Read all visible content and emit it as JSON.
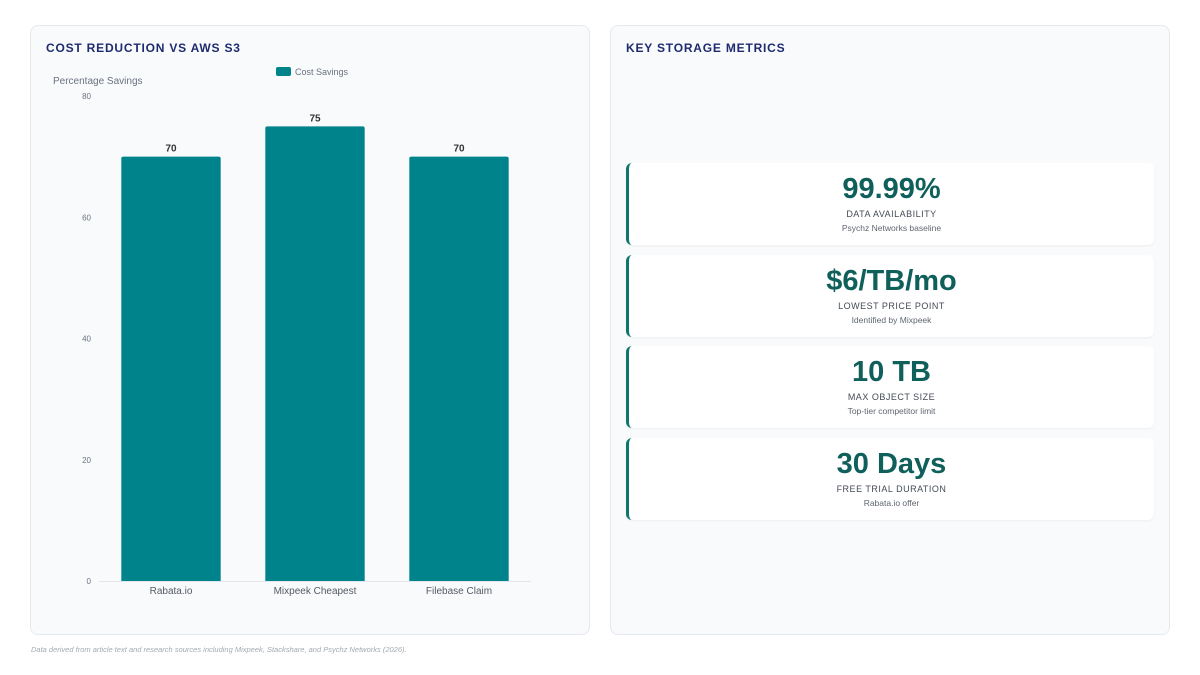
{
  "left_panel": {
    "title": "COST REDUCTION VS AWS S3"
  },
  "right_panel": {
    "title": "KEY STORAGE METRICS",
    "metrics": [
      {
        "value": "99.99%",
        "label": "DATA AVAILABILITY",
        "sub": "Psychz Networks baseline"
      },
      {
        "value": "$6/TB/mo",
        "label": "LOWEST PRICE POINT",
        "sub": "Identified by Mixpeek"
      },
      {
        "value": "10 TB",
        "label": "MAX OBJECT SIZE",
        "sub": "Top-tier competitor limit"
      },
      {
        "value": "30 Days",
        "label": "FREE TRIAL DURATION",
        "sub": "Rabata.io offer"
      }
    ],
    "accent_color": "#0f766e"
  },
  "footnote": "Data derived from article text and research sources including Mixpeek, Stackshare, and Psychz Networks (2026).",
  "chart_data": {
    "type": "bar",
    "title": "",
    "ylabel": "Percentage Savings",
    "xlabel": "",
    "categories": [
      "Rabata.io",
      "Mixpeek Cheapest",
      "Filebase Claim"
    ],
    "series": [
      {
        "name": "Cost Savings",
        "values": [
          70,
          75,
          70
        ],
        "color": "#00838a"
      }
    ],
    "ylim": [
      0,
      80
    ],
    "yticks": [
      0,
      20,
      40,
      60,
      80
    ],
    "data_labels": [
      "70",
      "75",
      "70"
    ],
    "legend_position": "top",
    "grid": false
  }
}
